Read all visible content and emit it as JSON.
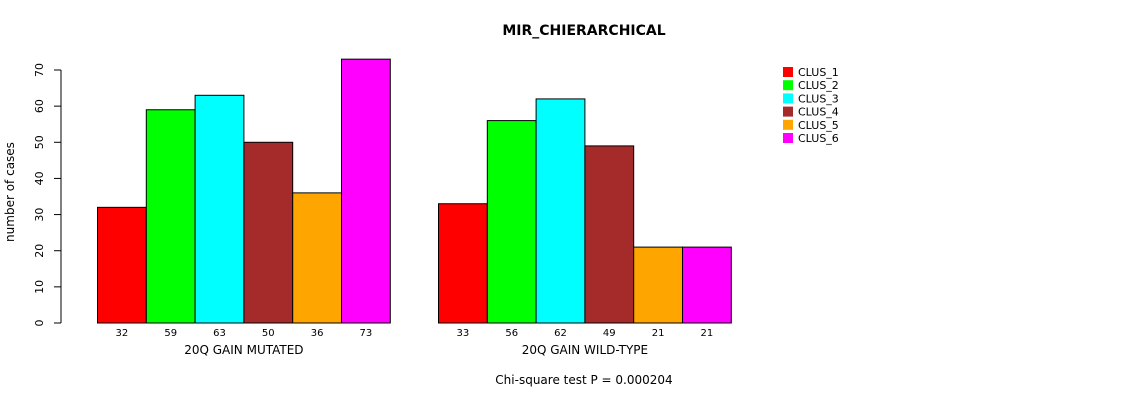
{
  "chart_data": {
    "type": "bar",
    "title": "MIR_CHIERARCHICAL",
    "ylabel": "number of cases",
    "ylim": [
      0,
      70
    ],
    "yticks": [
      0,
      10,
      20,
      30,
      40,
      50,
      60,
      70
    ],
    "grid": false,
    "legend_position": "top-right",
    "footnote": "Chi-square test P = 0.000204",
    "series": [
      {
        "name": "CLUS_1",
        "color": "#ff0000"
      },
      {
        "name": "CLUS_2",
        "color": "#00ff00"
      },
      {
        "name": "CLUS_3",
        "color": "#00ffff"
      },
      {
        "name": "CLUS_4",
        "color": "#a52a2a"
      },
      {
        "name": "CLUS_5",
        "color": "#ffa500"
      },
      {
        "name": "CLUS_6",
        "color": "#ff00ff"
      }
    ],
    "groups": [
      {
        "label": "20Q GAIN MUTATED",
        "values": [
          32,
          59,
          63,
          50,
          36,
          73
        ]
      },
      {
        "label": "20Q GAIN WILD-TYPE",
        "values": [
          33,
          56,
          62,
          49,
          21,
          21
        ]
      }
    ]
  }
}
